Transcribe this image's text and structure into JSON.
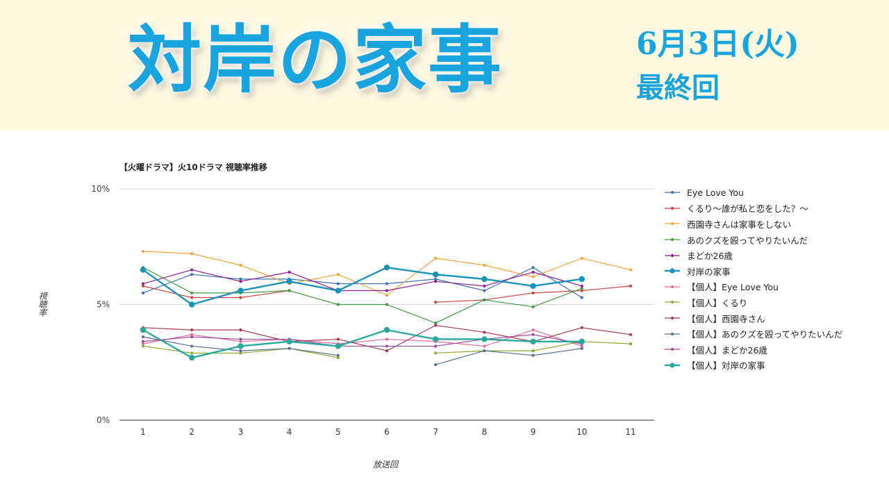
{
  "header": {
    "title": "対岸の家事",
    "air_date": "6月3日(火)",
    "episode_note": "最終回"
  },
  "chart_data": {
    "type": "line",
    "title": "【火曜ドラマ】火10ドラマ 視聴率推移",
    "xlabel": "放送回",
    "ylabel": "視聴率",
    "categories": [
      "1",
      "2",
      "3",
      "4",
      "5",
      "6",
      "7",
      "8",
      "9",
      "10",
      "11"
    ],
    "ylim": [
      0,
      10
    ],
    "yticks": [
      "0%",
      "5%",
      "10%"
    ],
    "grid": true,
    "legend_position": "right",
    "series": [
      {
        "name": "Eye Love You",
        "color": "#3f6fb5",
        "values": [
          5.5,
          6.3,
          6.1,
          6.1,
          5.9,
          5.9,
          6.1,
          5.6,
          6.6,
          5.3,
          null
        ]
      },
      {
        "name": "くるり〜誰が私と恋をした？〜",
        "color": "#c9473f",
        "values": [
          5.8,
          5.3,
          5.3,
          5.6,
          null,
          null,
          5.1,
          5.2,
          5.5,
          5.6,
          5.8
        ]
      },
      {
        "name": "西園寺さんは家事をしない",
        "color": "#f2a33a",
        "values": [
          7.3,
          7.2,
          6.7,
          5.9,
          6.3,
          5.4,
          7.0,
          6.7,
          6.2,
          7.0,
          6.5
        ]
      },
      {
        "name": "あのクズを殴ってやりたいんだ",
        "color": "#3e9a3c",
        "values": [
          6.6,
          5.5,
          5.5,
          5.6,
          5.0,
          5.0,
          4.2,
          5.2,
          4.9,
          5.7,
          null
        ]
      },
      {
        "name": "まどか26歳",
        "color": "#8e1f8f",
        "values": [
          5.9,
          6.5,
          6.0,
          6.4,
          5.6,
          5.6,
          6.0,
          5.8,
          6.4,
          5.8,
          null
        ]
      },
      {
        "name": "対岸の家事",
        "color": "#1a93b8",
        "emphasis": true,
        "values": [
          6.5,
          5.0,
          5.6,
          6.0,
          5.6,
          6.6,
          6.3,
          6.1,
          5.8,
          6.1,
          null
        ]
      },
      {
        "name": "【個人】Eye Love You",
        "color": "#e06c9f",
        "values": [
          3.3,
          3.7,
          3.4,
          3.5,
          3.3,
          3.5,
          3.4,
          3.2,
          3.9,
          3.2,
          null
        ]
      },
      {
        "name": "【個人】くるり",
        "color": "#8aa832",
        "values": [
          3.2,
          2.9,
          2.9,
          3.1,
          2.7,
          null,
          2.9,
          3.0,
          3.0,
          3.4,
          3.3
        ]
      },
      {
        "name": "【個人】西園寺さん",
        "color": "#a23b4e",
        "values": [
          4.0,
          3.9,
          3.9,
          3.4,
          3.5,
          3.0,
          4.1,
          3.8,
          3.4,
          4.0,
          3.7
        ]
      },
      {
        "name": "【個人】あのクズを殴ってやりたいんだ",
        "color": "#5a6f8f",
        "values": [
          3.6,
          3.2,
          3.0,
          3.1,
          2.8,
          null,
          2.4,
          3.0,
          2.8,
          3.1,
          null
        ]
      },
      {
        "name": "【個人】まどか26歳",
        "color": "#9e4a9e",
        "values": [
          3.4,
          3.6,
          3.5,
          3.5,
          3.2,
          3.2,
          3.2,
          3.5,
          3.7,
          3.3,
          null
        ]
      },
      {
        "name": "【個人】対岸の家事",
        "color": "#2aa89a",
        "emphasis": true,
        "values": [
          3.9,
          2.7,
          3.2,
          3.4,
          3.2,
          3.9,
          3.5,
          3.5,
          3.4,
          3.4,
          null
        ]
      }
    ]
  }
}
